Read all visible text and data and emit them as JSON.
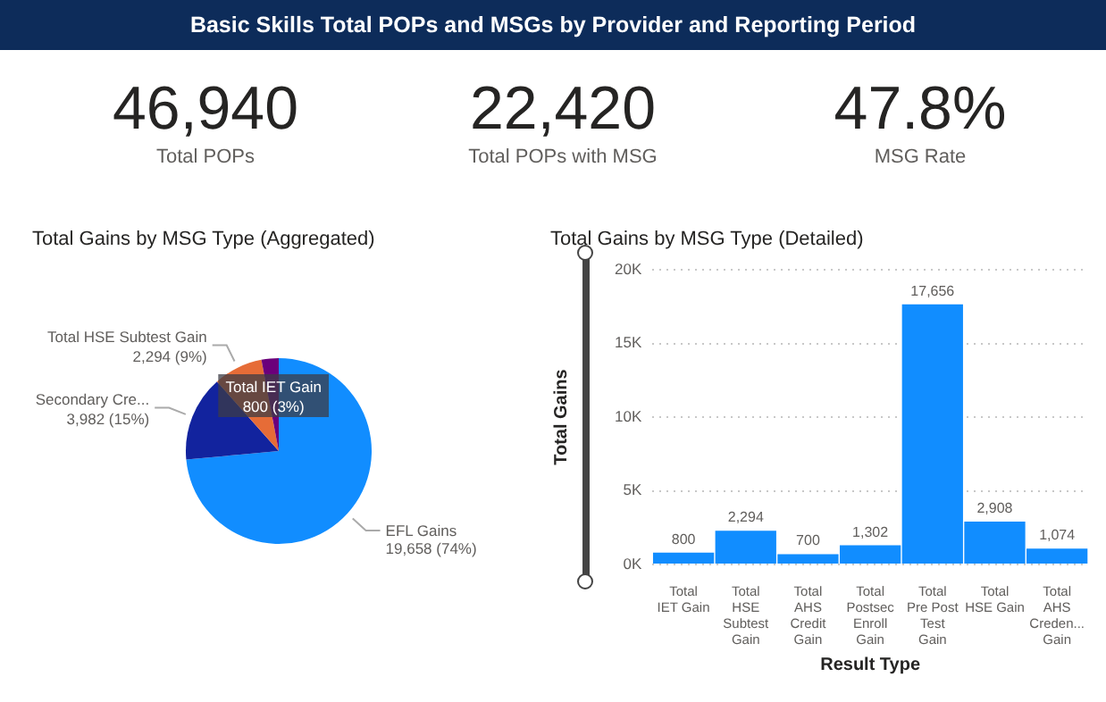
{
  "chart_data": [
    {
      "type": "other",
      "title": "Basic Skills Total POPs and MSGs by Provider and Reporting Period",
      "annotations": [
        "46,940",
        "Total POPs",
        "22,420",
        "Total POPs with MSG",
        "47.8%",
        "MSG Rate"
      ]
    },
    {
      "type": "pie",
      "title": "Total Gains by MSG Type (Aggregated)",
      "categories": [
        "EFL Gains",
        "Secondary Cre...",
        "Total HSE Subtest Gain",
        "Total IET Gain"
      ],
      "values": [
        19658,
        3982,
        2294,
        800
      ],
      "colors": [
        "#118dff",
        "#12239e",
        "#e66c37",
        "#6b007b"
      ],
      "value_labels": [
        "19,658 (74%)",
        "3,982 (15%)",
        "2,294 (9%)",
        "800 (3%)"
      ]
    },
    {
      "type": "bar",
      "title": "Total Gains by MSG Type (Detailed)",
      "xlabel": "Result Type",
      "ylabel": "Total Gains",
      "categories": [
        "Total IET Gain",
        "Total HSE Subtest Gain",
        "Total AHS Credit Gain",
        "Total Postsec Enroll Gain",
        "Total Pre Post Test Gain",
        "Total HSE Gain",
        "Total AHS Creden... Gain"
      ],
      "values": [
        800,
        2294,
        700,
        1302,
        17656,
        2908,
        1074
      ],
      "color": "#118dff",
      "value_labels": [
        "800",
        "2,294",
        "700",
        "1,302",
        "17,656",
        "2,908",
        "1,074"
      ],
      "ylim": [
        0,
        20000
      ],
      "yticks": [
        {
          "value": 0,
          "label": "0K"
        },
        {
          "value": 5000,
          "label": "5K"
        },
        {
          "value": 10000,
          "label": "10K"
        },
        {
          "value": 15000,
          "label": "15K"
        },
        {
          "value": 20000,
          "label": "20K"
        }
      ],
      "grid": "y"
    }
  ]
}
